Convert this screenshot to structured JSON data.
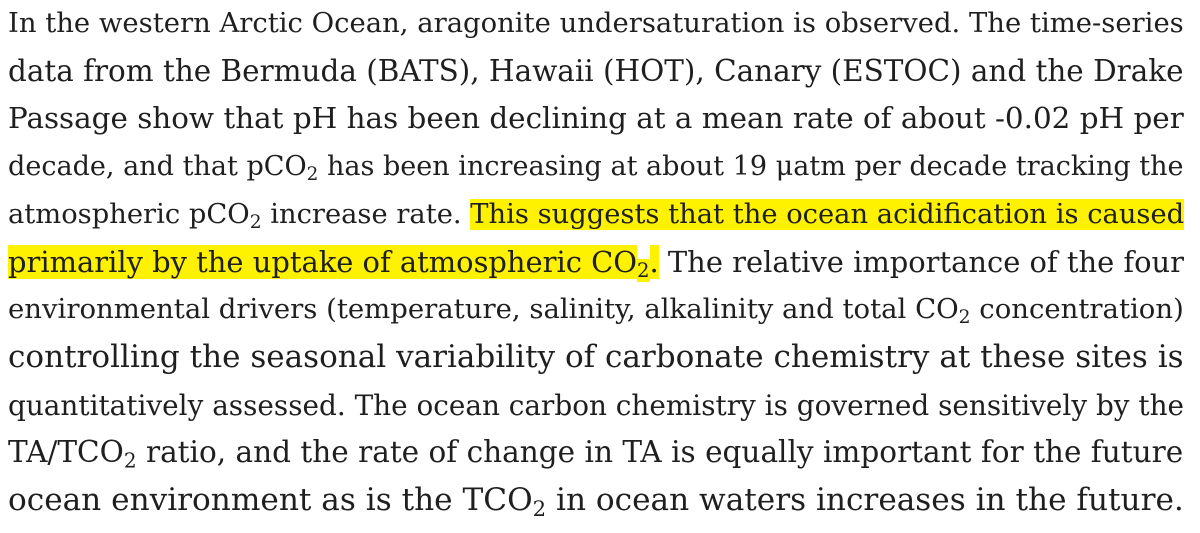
{
  "highlight_color": "#fff200",
  "paragraph": {
    "lines": [
      {
        "segments": [
          {
            "text": "In the western Arctic Ocean, aragonite undersaturation is observed. The time-series"
          }
        ]
      },
      {
        "segments": [
          {
            "text": "data from the Bermuda (BATS), Hawaii (HOT), Canary (ESTOC) and the Drake"
          }
        ]
      },
      {
        "segments": [
          {
            "text": "Passage show that pH has been declining at a mean rate of about -0.02 pH per"
          }
        ]
      },
      {
        "segments": [
          {
            "text": "decade, and that pCO"
          },
          {
            "text": "2",
            "sub": true
          },
          {
            "text": " has been increasing at about 19 μatm per decade tracking the"
          }
        ]
      },
      {
        "segments": [
          {
            "text": "atmospheric pCO"
          },
          {
            "text": "2",
            "sub": true
          },
          {
            "text": " increase rate. "
          },
          {
            "text": "This suggests that the ocean acidification is caused",
            "highlight": true
          }
        ]
      },
      {
        "segments": [
          {
            "text": "primarily by the uptake of atmospheric CO",
            "highlight": true
          },
          {
            "text": "2",
            "sub": true,
            "highlight": true
          },
          {
            "text": ".",
            "highlight": true
          },
          {
            "text": " The relative importance of the four"
          }
        ]
      },
      {
        "segments": [
          {
            "text": "environmental drivers (temperature, salinity, alkalinity and total CO"
          },
          {
            "text": "2",
            "sub": true
          },
          {
            "text": " concentration)"
          }
        ]
      },
      {
        "segments": [
          {
            "text": "controlling the seasonal variability of carbonate chemistry at these sites is"
          }
        ]
      },
      {
        "segments": [
          {
            "text": "quantitatively assessed. The ocean carbon chemistry is governed sensitively by the"
          }
        ]
      },
      {
        "segments": [
          {
            "text": "TA/TCO"
          },
          {
            "text": "2",
            "sub": true
          },
          {
            "text": " ratio, and the rate of change in TA is equally important for the future"
          }
        ]
      },
      {
        "segments": [
          {
            "text": "ocean environment as is the TCO"
          },
          {
            "text": "2",
            "sub": true
          },
          {
            "text": " in ocean waters increases in the future."
          }
        ]
      }
    ]
  }
}
